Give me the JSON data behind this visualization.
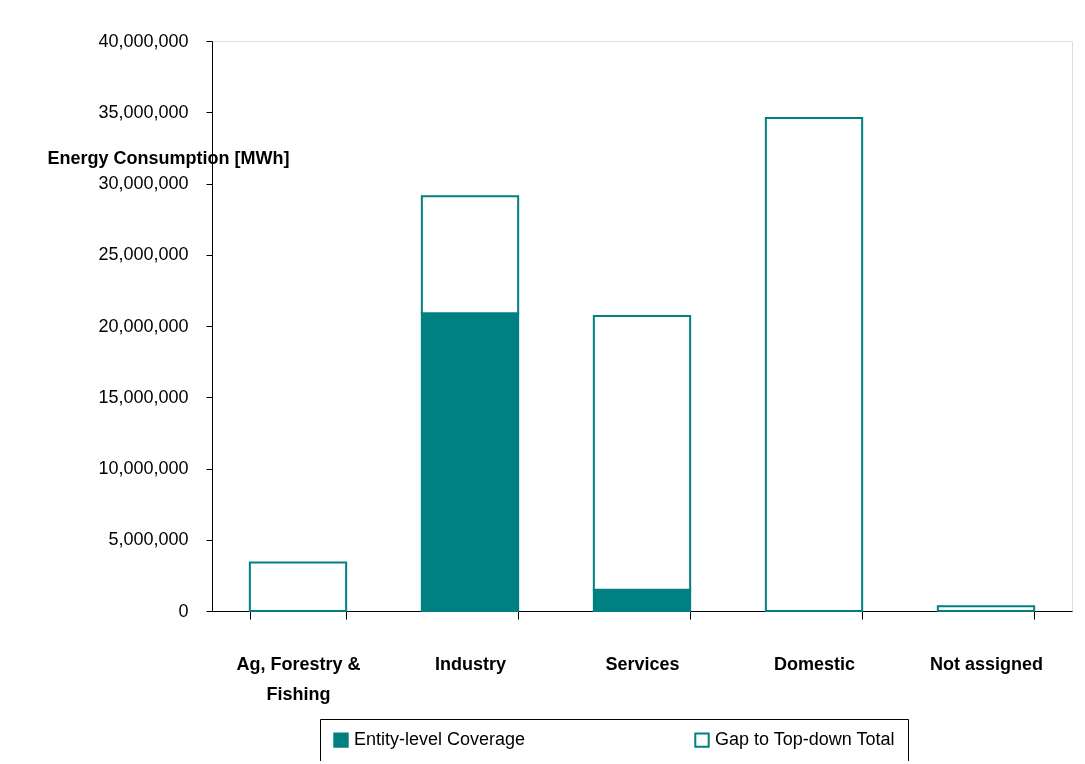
{
  "chart_data": {
    "type": "bar",
    "stacked": true,
    "ylabel": "Energy Consumption [MWh]",
    "categories": [
      "Ag, Forestry & Fishing",
      "Industry",
      "Services",
      "Domestic",
      "Not assigned"
    ],
    "series": [
      {
        "name": "Entity-level Coverage",
        "color": "#008080",
        "values": [
          null,
          20900000,
          1500000,
          null,
          null
        ]
      },
      {
        "name": "Gap to Top-down Total",
        "color": "#ffffff",
        "values": [
          3400000,
          8200000,
          19200000,
          34600000,
          330000
        ]
      }
    ],
    "ylim": [
      0,
      40000000
    ],
    "yticks": [
      0,
      {
        "value": 5000000,
        "label": "5,000,000"
      },
      {
        "value": 10000000,
        "label": "10,000,000"
      },
      {
        "value": 15000000,
        "label": "15,000,000"
      },
      {
        "value": 20000000,
        "label": "20,000,000"
      },
      {
        "value": 25000000,
        "label": "25,000,000"
      },
      {
        "value": 30000000,
        "label": "30,000,000"
      },
      {
        "value": 35000000,
        "label": "35,000,000"
      },
      {
        "value": 40000000,
        "label": "40,000,000"
      }
    ],
    "legend": "bottom"
  }
}
